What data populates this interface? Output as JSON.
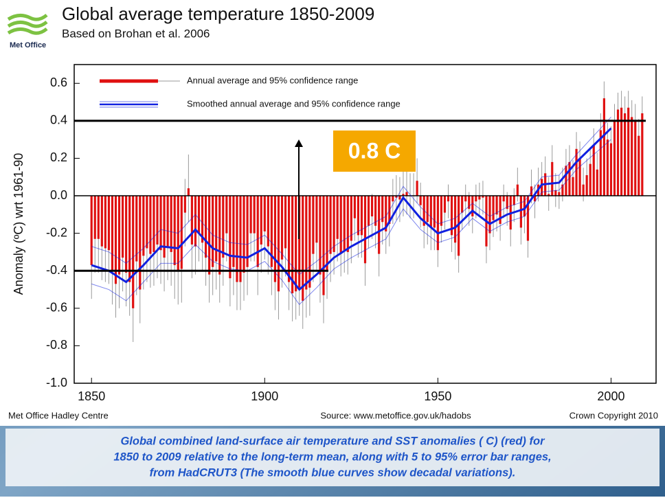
{
  "header": {
    "logo": "Met Office",
    "title": "Global average temperature 1850-2009",
    "subtitle": "Based on Brohan et al. 2006"
  },
  "chart_data": {
    "type": "bar",
    "y_label": "Anomaly (ºC) wrt 1961-90",
    "x": [
      1850,
      1851,
      1852,
      1853,
      1854,
      1855,
      1856,
      1857,
      1858,
      1859,
      1860,
      1861,
      1862,
      1863,
      1864,
      1865,
      1866,
      1867,
      1868,
      1869,
      1870,
      1871,
      1872,
      1873,
      1874,
      1875,
      1876,
      1877,
      1878,
      1879,
      1880,
      1881,
      1882,
      1883,
      1884,
      1885,
      1886,
      1887,
      1888,
      1889,
      1890,
      1891,
      1892,
      1893,
      1894,
      1895,
      1896,
      1897,
      1898,
      1899,
      1900,
      1901,
      1902,
      1903,
      1904,
      1905,
      1906,
      1907,
      1908,
      1909,
      1910,
      1911,
      1912,
      1913,
      1914,
      1915,
      1916,
      1917,
      1918,
      1919,
      1920,
      1921,
      1922,
      1923,
      1924,
      1925,
      1926,
      1927,
      1928,
      1929,
      1930,
      1931,
      1932,
      1933,
      1934,
      1935,
      1936,
      1937,
      1938,
      1939,
      1940,
      1941,
      1942,
      1943,
      1944,
      1945,
      1946,
      1947,
      1948,
      1949,
      1950,
      1951,
      1952,
      1953,
      1954,
      1955,
      1956,
      1957,
      1958,
      1959,
      1960,
      1961,
      1962,
      1963,
      1964,
      1965,
      1966,
      1967,
      1968,
      1969,
      1970,
      1971,
      1972,
      1973,
      1974,
      1975,
      1976,
      1977,
      1978,
      1979,
      1980,
      1981,
      1982,
      1983,
      1984,
      1985,
      1986,
      1987,
      1988,
      1989,
      1990,
      1991,
      1992,
      1993,
      1994,
      1995,
      1996,
      1997,
      1998,
      1999,
      2000,
      2001,
      2002,
      2003,
      2004,
      2005,
      2006,
      2007,
      2008,
      2009
    ],
    "series": [
      {
        "name": "Annual average and 95% confidence range",
        "color": "#e01010",
        "values": [
          -0.37,
          -0.23,
          -0.23,
          -0.27,
          -0.28,
          -0.29,
          -0.4,
          -0.47,
          -0.42,
          -0.33,
          -0.41,
          -0.46,
          -0.6,
          -0.35,
          -0.5,
          -0.32,
          -0.28,
          -0.31,
          -0.3,
          -0.26,
          -0.29,
          -0.33,
          -0.27,
          -0.3,
          -0.37,
          -0.4,
          -0.39,
          -0.09,
          0.04,
          -0.26,
          -0.27,
          -0.2,
          -0.25,
          -0.33,
          -0.42,
          -0.38,
          -0.35,
          -0.42,
          -0.33,
          -0.2,
          -0.44,
          -0.38,
          -0.46,
          -0.46,
          -0.41,
          -0.38,
          -0.2,
          -0.2,
          -0.38,
          -0.26,
          -0.19,
          -0.27,
          -0.38,
          -0.46,
          -0.51,
          -0.34,
          -0.28,
          -0.46,
          -0.52,
          -0.51,
          -0.49,
          -0.56,
          -0.5,
          -0.49,
          -0.31,
          -0.25,
          -0.42,
          -0.53,
          -0.4,
          -0.31,
          -0.3,
          -0.23,
          -0.31,
          -0.29,
          -0.3,
          -0.24,
          -0.12,
          -0.21,
          -0.21,
          -0.36,
          -0.16,
          -0.11,
          -0.16,
          -0.31,
          -0.14,
          -0.19,
          -0.15,
          -0.03,
          -0.01,
          -0.02,
          0.01,
          0.02,
          0.0,
          0.0,
          0.08,
          -0.05,
          -0.16,
          -0.14,
          -0.17,
          -0.17,
          -0.29,
          -0.16,
          -0.09,
          -0.03,
          -0.21,
          -0.25,
          -0.32,
          -0.09,
          -0.03,
          -0.07,
          -0.11,
          -0.03,
          -0.02,
          -0.01,
          -0.27,
          -0.2,
          -0.13,
          -0.1,
          -0.15,
          -0.03,
          -0.07,
          -0.18,
          -0.05,
          0.06,
          -0.17,
          -0.11,
          -0.24,
          0.05,
          -0.03,
          0.06,
          0.09,
          0.12,
          0.01,
          0.18,
          0.03,
          0.02,
          0.06,
          0.16,
          0.18,
          0.1,
          0.25,
          0.2,
          0.06,
          0.11,
          0.17,
          0.27,
          0.14,
          0.35,
          0.52,
          0.3,
          0.28,
          0.4,
          0.46,
          0.47,
          0.44,
          0.47,
          0.42,
          0.4,
          0.32,
          0.44
        ],
        "errors": [
          0.18,
          0.18,
          0.18,
          0.18,
          0.18,
          0.18,
          0.18,
          0.18,
          0.18,
          0.18,
          0.18,
          0.18,
          0.18,
          0.18,
          0.18,
          0.18,
          0.18,
          0.18,
          0.18,
          0.18,
          0.18,
          0.18,
          0.18,
          0.18,
          0.18,
          0.18,
          0.18,
          0.18,
          0.18,
          0.18,
          0.15,
          0.15,
          0.15,
          0.15,
          0.15,
          0.15,
          0.15,
          0.15,
          0.15,
          0.15,
          0.15,
          0.15,
          0.15,
          0.15,
          0.15,
          0.15,
          0.15,
          0.15,
          0.15,
          0.15,
          0.15,
          0.15,
          0.15,
          0.15,
          0.15,
          0.15,
          0.15,
          0.15,
          0.15,
          0.15,
          0.15,
          0.15,
          0.15,
          0.15,
          0.15,
          0.15,
          0.15,
          0.15,
          0.15,
          0.15,
          0.12,
          0.12,
          0.12,
          0.12,
          0.12,
          0.12,
          0.12,
          0.12,
          0.12,
          0.12,
          0.12,
          0.12,
          0.12,
          0.12,
          0.12,
          0.12,
          0.12,
          0.12,
          0.12,
          0.12,
          0.12,
          0.12,
          0.12,
          0.12,
          0.12,
          0.12,
          0.12,
          0.12,
          0.12,
          0.12,
          0.09,
          0.09,
          0.09,
          0.09,
          0.09,
          0.09,
          0.09,
          0.09,
          0.09,
          0.09,
          0.09,
          0.09,
          0.09,
          0.09,
          0.09,
          0.09,
          0.09,
          0.09,
          0.09,
          0.09,
          0.09,
          0.09,
          0.09,
          0.09,
          0.09,
          0.09,
          0.09,
          0.09,
          0.09,
          0.09,
          0.09,
          0.09,
          0.09,
          0.09,
          0.09,
          0.09,
          0.09,
          0.09,
          0.09,
          0.09,
          0.09,
          0.09,
          0.09,
          0.09,
          0.09,
          0.09,
          0.09,
          0.09,
          0.09,
          0.09,
          0.09,
          0.09,
          0.09,
          0.09,
          0.09,
          0.09,
          0.09,
          0.09,
          0.09,
          0.09
        ]
      },
      {
        "name": "Smoothed annual average and 95% confidence range",
        "color": "#1020e0",
        "x": [
          1850,
          1855,
          1860,
          1865,
          1870,
          1875,
          1880,
          1885,
          1890,
          1895,
          1900,
          1905,
          1910,
          1915,
          1920,
          1925,
          1930,
          1935,
          1940,
          1945,
          1950,
          1955,
          1960,
          1965,
          1970,
          1975,
          1980,
          1985,
          1990,
          1995,
          2000
        ],
        "values": [
          -0.37,
          -0.4,
          -0.46,
          -0.37,
          -0.27,
          -0.28,
          -0.18,
          -0.28,
          -0.32,
          -0.33,
          -0.28,
          -0.38,
          -0.5,
          -0.42,
          -0.33,
          -0.27,
          -0.22,
          -0.17,
          -0.01,
          -0.12,
          -0.2,
          -0.17,
          -0.08,
          -0.15,
          -0.1,
          -0.07,
          0.06,
          0.07,
          0.18,
          0.27,
          0.36
        ],
        "lower": [
          -0.47,
          -0.5,
          -0.56,
          -0.46,
          -0.36,
          -0.36,
          -0.26,
          -0.35,
          -0.39,
          -0.4,
          -0.35,
          -0.45,
          -0.58,
          -0.49,
          -0.39,
          -0.33,
          -0.28,
          -0.23,
          -0.07,
          -0.18,
          -0.25,
          -0.22,
          -0.12,
          -0.19,
          -0.14,
          -0.11,
          0.02,
          0.03,
          0.14,
          0.22,
          0.3
        ],
        "upper": [
          -0.27,
          -0.3,
          -0.36,
          -0.28,
          -0.18,
          -0.2,
          -0.1,
          -0.21,
          -0.25,
          -0.26,
          -0.21,
          -0.31,
          -0.42,
          -0.35,
          -0.27,
          -0.21,
          -0.16,
          -0.11,
          0.05,
          -0.06,
          -0.15,
          -0.12,
          -0.04,
          -0.11,
          -0.06,
          -0.03,
          0.1,
          0.11,
          0.22,
          0.32,
          0.42
        ]
      }
    ],
    "xlim": [
      1845,
      2013
    ],
    "xticks": [
      1850,
      1900,
      1950,
      2000
    ],
    "ylim": [
      -1.0,
      0.7
    ],
    "yticks": [
      0.6,
      0.4,
      0.2,
      {
        "value": 0,
        "label": "0.0"
      },
      -0.2,
      -0.4,
      -0.6,
      -0.8,
      {
        "value": -1,
        "label": "-1.0"
      }
    ],
    "annotation": {
      "label": "0.8 C",
      "reference_lines": [
        0.4,
        -0.4
      ]
    }
  },
  "footer": {
    "left": "Met Office Hadley Centre",
    "center": "Source: www.metoffice.gov.uk/hadobs",
    "right": "Crown Copyright 2010"
  },
  "caption": [
    "Global combined land-surface air temperature and SST anomalies ( C) (red) for",
    "1850 to 2009 relative to the long-term mean, along with 5 to 95% error bar ranges,",
    "from HadCRUT3 (The smooth blue curves show decadal variations)."
  ]
}
